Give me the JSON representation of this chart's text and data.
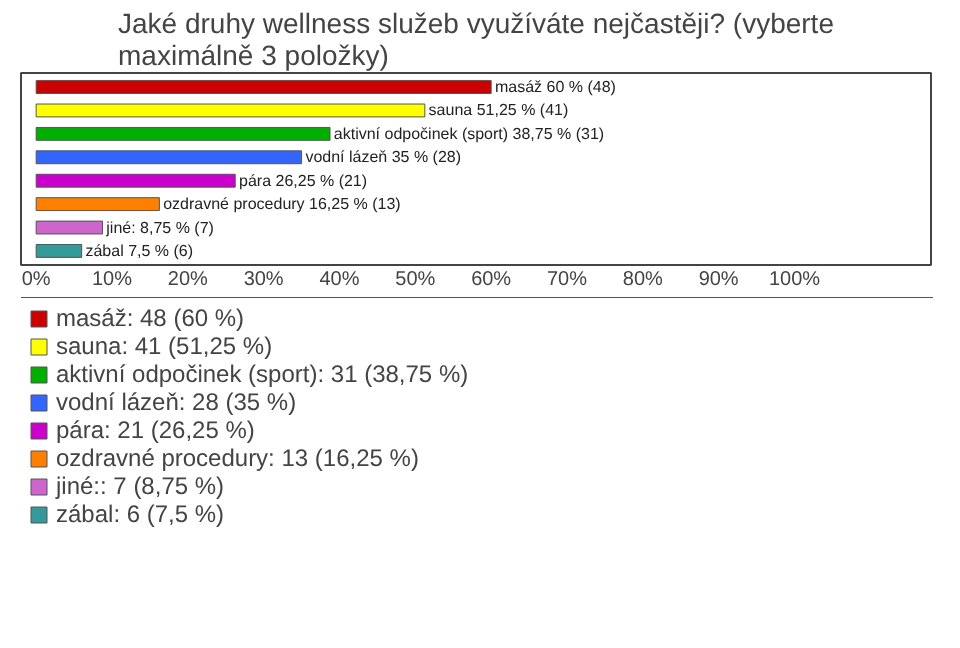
{
  "chart_data": {
    "type": "bar",
    "orientation": "horizontal",
    "stacked": true,
    "title": "Jaké druhy wellness služeb využíváte nejčastěji? (vyberte maximálně 3 položky)",
    "categories": [
      null,
      null,
      null,
      null,
      null,
      null,
      null,
      null
    ],
    "xlim": [
      -2,
      118
    ],
    "xticks": [
      {
        "value": 0,
        "label": "0%"
      },
      {
        "value": 10,
        "label": "10%"
      },
      {
        "value": 20,
        "label": "20%"
      },
      {
        "value": 30,
        "label": "30%"
      },
      {
        "value": 40,
        "label": "40%"
      },
      {
        "value": 50,
        "label": "50%"
      },
      {
        "value": 60,
        "label": "60%"
      },
      {
        "value": 70,
        "label": "70%"
      },
      {
        "value": 80,
        "label": "80%"
      },
      {
        "value": 90,
        "label": "90%"
      },
      {
        "value": 100,
        "label": "100%"
      }
    ],
    "grid": false,
    "legend": "bottom",
    "series": [
      {
        "name": "masáž: 48 (60 %)",
        "color": "#cc0000",
        "values": [
          60,
          null,
          null,
          null,
          null,
          null,
          null,
          null
        ],
        "value_labels": [
          "masáž 60 % (48)",
          null,
          null,
          null,
          null,
          null,
          null,
          null
        ]
      },
      {
        "name": "sauna: 41 (51,25 %)",
        "color": "#ffff00",
        "values": [
          null,
          51.25,
          null,
          null,
          null,
          null,
          null,
          null
        ],
        "value_labels": [
          null,
          "sauna 51,25 % (41)",
          null,
          null,
          null,
          null,
          null,
          null
        ]
      },
      {
        "name": "aktivní odpočinek (sport): 31 (38,75 %)",
        "color": "#00b000",
        "values": [
          null,
          null,
          38.75,
          null,
          null,
          null,
          null,
          null
        ],
        "value_labels": [
          null,
          null,
          "aktivní odpočinek (sport) 38,75 % (31)",
          null,
          null,
          null,
          null,
          null
        ]
      },
      {
        "name": "vodní lázeň: 28 (35 %)",
        "color": "#3366ff",
        "values": [
          null,
          null,
          null,
          35,
          null,
          null,
          null,
          null
        ],
        "value_labels": [
          null,
          null,
          null,
          "vodní lázeň 35 % (28)",
          null,
          null,
          null,
          null
        ]
      },
      {
        "name": "pára: 21 (26,25 %)",
        "color": "#cc00cc",
        "values": [
          null,
          null,
          null,
          null,
          26.25,
          null,
          null,
          null
        ],
        "value_labels": [
          null,
          null,
          null,
          null,
          "pára 26,25 % (21)",
          null,
          null,
          null
        ]
      },
      {
        "name": "ozdravné procedury: 13 (16,25 %)",
        "color": "#ff8000",
        "values": [
          null,
          null,
          null,
          null,
          null,
          16.25,
          null,
          null
        ],
        "value_labels": [
          null,
          null,
          null,
          null,
          null,
          "ozdravné procedury 16,25 % (13)",
          null,
          null
        ]
      },
      {
        "name": "jiné:: 7 (8,75 %)",
        "color": "#cc66cc",
        "values": [
          null,
          null,
          null,
          null,
          null,
          null,
          8.75,
          null
        ],
        "value_labels": [
          null,
          null,
          null,
          null,
          null,
          null,
          "jiné: 8,75 % (7)",
          null
        ]
      },
      {
        "name": "zábal: 6 (7,5 %)",
        "color": "#339999",
        "values": [
          null,
          null,
          null,
          null,
          null,
          null,
          null,
          6
        ],
        "value_labels": [
          null,
          null,
          null,
          null,
          null,
          null,
          null,
          "zábal 7,5 % (6)"
        ]
      }
    ]
  }
}
